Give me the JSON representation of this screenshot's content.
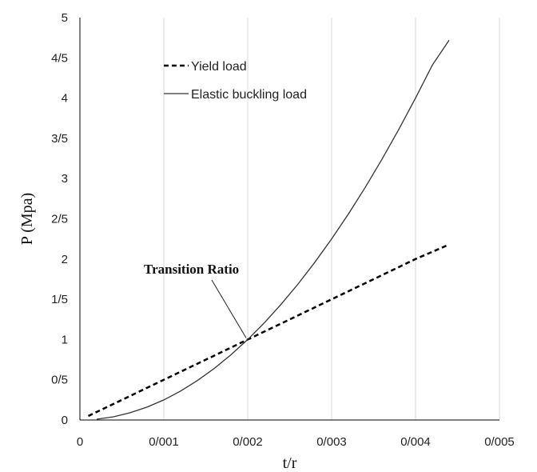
{
  "chart_data": {
    "type": "line",
    "xlabel": "t/r",
    "ylabel": "P (Mpa)",
    "xlim": [
      0,
      0.005
    ],
    "ylim": [
      0,
      5
    ],
    "x_ticks": [
      {
        "value": 0,
        "label": "0"
      },
      {
        "value": 0.001,
        "label": "0/001"
      },
      {
        "value": 0.002,
        "label": "0/002"
      },
      {
        "value": 0.003,
        "label": "0/003"
      },
      {
        "value": 0.004,
        "label": "0/004"
      },
      {
        "value": 0.005,
        "label": "0/005"
      }
    ],
    "y_ticks": [
      {
        "value": 0,
        "label": "0"
      },
      {
        "value": 0.5,
        "label": "0/5"
      },
      {
        "value": 1,
        "label": "1"
      },
      {
        "value": 1.5,
        "label": "1/5"
      },
      {
        "value": 2,
        "label": "2"
      },
      {
        "value": 2.5,
        "label": "2/5"
      },
      {
        "value": 3,
        "label": "3"
      },
      {
        "value": 3.5,
        "label": "3/5"
      },
      {
        "value": 4,
        "label": "4"
      },
      {
        "value": 4.5,
        "label": "4/5"
      },
      {
        "value": 5,
        "label": "5"
      }
    ],
    "grid": "vertical",
    "legend_position": "top-left",
    "series": [
      {
        "name": "Yield load",
        "style": "dashed",
        "color": "#000000",
        "x": [
          0.0001,
          0.0005,
          0.001,
          0.0015,
          0.002,
          0.0025,
          0.003,
          0.0035,
          0.004,
          0.0044
        ],
        "y": [
          0.05,
          0.25,
          0.5,
          0.75,
          1.0,
          1.25,
          1.5,
          1.75,
          2.0,
          2.18
        ]
      },
      {
        "name": "Elastic buckling load",
        "style": "solid",
        "color": "#333333",
        "x": [
          0.0002,
          0.0004,
          0.0006,
          0.0008,
          0.001,
          0.0012,
          0.0014,
          0.0016,
          0.0018,
          0.002,
          0.0022,
          0.0024,
          0.0026,
          0.0028,
          0.003,
          0.0032,
          0.0034,
          0.0036,
          0.0038,
          0.004,
          0.0042,
          0.0044
        ],
        "y": [
          0.01,
          0.04,
          0.09,
          0.16,
          0.25,
          0.36,
          0.49,
          0.64,
          0.81,
          1.0,
          1.21,
          1.44,
          1.69,
          1.96,
          2.25,
          2.56,
          2.89,
          3.24,
          3.61,
          4.0,
          4.41,
          4.72
        ]
      }
    ],
    "annotations": [
      {
        "text": "Transition Ratio",
        "x": 0.002,
        "y": 1.0
      }
    ]
  }
}
